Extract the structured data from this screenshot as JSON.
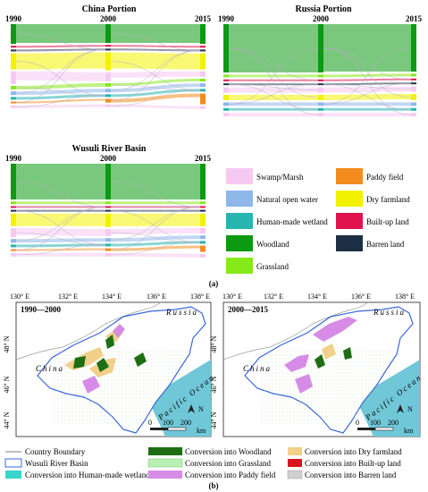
{
  "panel_a": {
    "china_title": "China Portion",
    "russia_title": "Russia Portion",
    "wusuli_title": "Wusuli River Basin",
    "years": [
      "1990",
      "2000",
      "2015"
    ],
    "legend": [
      {
        "label": "Swamp/Marsh",
        "color": "#f7c9f2"
      },
      {
        "label": "Paddy field",
        "color": "#f28c1e"
      },
      {
        "label": "Natural open water",
        "color": "#8fb7ea"
      },
      {
        "label": "Dry farmland",
        "color": "#f2f200"
      },
      {
        "label": "Human-made wetland",
        "color": "#27b5b0"
      },
      {
        "label": "Built-up land",
        "color": "#e0134e"
      },
      {
        "label": "Woodland",
        "color": "#0c9a12"
      },
      {
        "label": "Barren land",
        "color": "#1d2f45"
      },
      {
        "label": "Grassland",
        "color": "#86ea18"
      }
    ],
    "caption": "(a)"
  },
  "panel_b": {
    "left_period": "1990—2000",
    "right_period": "2000—2015",
    "lon_labels": [
      "130° E",
      "132° E",
      "134° E",
      "136° E",
      "138° E"
    ],
    "lat_labels": [
      "48° N",
      "46° N",
      "44° N"
    ],
    "russia_label": "Russia",
    "china_label": "China",
    "ocean_label": "Pacific Ocean",
    "north_label": "N",
    "scale_ticks": [
      "0",
      "100",
      "200"
    ],
    "scale_unit": "km",
    "legend": [
      {
        "label": "Country Boundary",
        "color": "#9a9a9a",
        "kind": "line"
      },
      {
        "label": "Conversion into Woodland",
        "color": "#1e6e14",
        "kind": "box"
      },
      {
        "label": "Conversion into Dry farmland",
        "color": "#f2d08a",
        "kind": "box"
      },
      {
        "label": "Wusuli River Basin",
        "color": "#3b68d8",
        "kind": "outline"
      },
      {
        "label": "Conversion into Grassland",
        "color": "#b8f0b4",
        "kind": "box"
      },
      {
        "label": "Conversion into Built-up land",
        "color": "#d8151e",
        "kind": "box"
      },
      {
        "label": "Conversion into Human-made wetland",
        "color": "#35d6c9",
        "kind": "box"
      },
      {
        "label": "Conversion into Paddy field",
        "color": "#d68ce6",
        "kind": "box"
      },
      {
        "label": "Conversion into Barren land",
        "color": "#cfcfcf",
        "kind": "box"
      }
    ],
    "caption": "(b)"
  }
}
